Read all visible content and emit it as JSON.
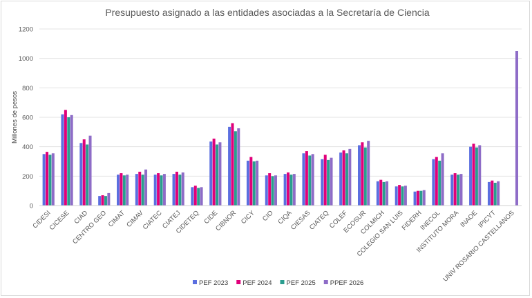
{
  "chart_data": {
    "type": "bar",
    "title": "Presupuesto asignado a las entidades asociadas a la Secretaría de Ciencia",
    "xlabel": "",
    "ylabel": "Millones de pesos",
    "ylim": [
      0,
      1200
    ],
    "yticks": [
      0,
      200,
      400,
      600,
      800,
      1000,
      1200
    ],
    "grid": true,
    "legend": "bottom",
    "categories": [
      "CIDESI",
      "CICESE",
      "CIAD",
      "CENTRO GEO",
      "CIMAT",
      "CIMAV",
      "CIATEC",
      "CIATEJ",
      "CIDETEQ",
      "CIDE",
      "CIBNOR",
      "CICY",
      "CIO",
      "CIQA",
      "CIESAS",
      "CIATEQ",
      "COLEF",
      "ECOSUR",
      "COLMICH",
      "COLEGIO SAN LUIS",
      "FIDERH",
      "INECOL",
      "INSTITUTO MORA",
      "INAOE",
      "IPICYT",
      "UNIV ROSARIO CASTELLANOS"
    ],
    "series": [
      {
        "name": "PEF 2023",
        "color": "#5b6fe0",
        "values": [
          350,
          620,
          425,
          65,
          210,
          215,
          210,
          215,
          125,
          435,
          535,
          305,
          205,
          215,
          355,
          315,
          360,
          410,
          165,
          130,
          95,
          315,
          210,
          400,
          160,
          null
        ]
      },
      {
        "name": "PEF 2024",
        "color": "#e0007a",
        "values": [
          365,
          650,
          450,
          70,
          220,
          230,
          220,
          230,
          135,
          455,
          560,
          330,
          220,
          225,
          370,
          345,
          375,
          430,
          175,
          140,
          100,
          330,
          220,
          420,
          170,
          null
        ]
      },
      {
        "name": "PEF 2025",
        "color": "#2a9d8f",
        "values": [
          345,
          600,
          415,
          65,
          205,
          210,
          205,
          210,
          120,
          415,
          505,
          300,
          200,
          210,
          340,
          310,
          355,
          395,
          160,
          130,
          100,
          305,
          210,
          395,
          155,
          null
        ]
      },
      {
        "name": "PPEF 2026",
        "color": "#8e6cc7",
        "values": [
          355,
          615,
          475,
          85,
          210,
          245,
          215,
          225,
          125,
          430,
          525,
          305,
          205,
          215,
          350,
          325,
          385,
          440,
          165,
          135,
          105,
          355,
          215,
          410,
          165,
          1050
        ]
      }
    ]
  }
}
